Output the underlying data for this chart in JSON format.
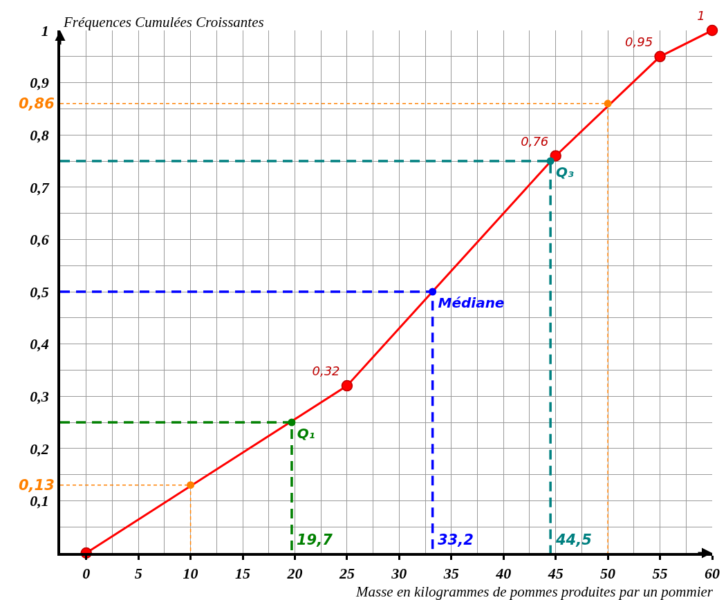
{
  "chart_data": {
    "type": "line",
    "xlabel": "Masse en kilogrammes de pommes produites par un pommier",
    "ylabel": "Fréquences Cumulées Croissantes",
    "xlim": [
      -2.5,
      60
    ],
    "xticks": [
      0,
      5,
      10,
      15,
      20,
      25,
      30,
      35,
      40,
      45,
      50,
      55,
      60
    ],
    "ylim": [
      0,
      1
    ],
    "yticks": [
      {
        "value": 0.1,
        "label": "0,1"
      },
      {
        "value": 0.2,
        "label": "0,2"
      },
      {
        "value": 0.3,
        "label": "0,3"
      },
      {
        "value": 0.4,
        "label": "0,4"
      },
      {
        "value": 0.5,
        "label": "0,5"
      },
      {
        "value": 0.6,
        "label": "0,6"
      },
      {
        "value": 0.7,
        "label": "0,7"
      },
      {
        "value": 0.8,
        "label": "0,8"
      },
      {
        "value": 0.9,
        "label": "0,9"
      },
      1
    ],
    "grid": true,
    "legend": false,
    "series": [
      {
        "color": "#ff0000",
        "x": [
          0,
          25,
          45,
          55,
          60
        ],
        "values": [
          0,
          0.32,
          0.76,
          0.95,
          1
        ],
        "marker": "circle",
        "line_style": "solid",
        "value_labels": [
          null,
          "0,32",
          "0,76",
          "0,95",
          "1"
        ]
      },
      {
        "type": "line",
        "color": "#ff8000",
        "x": [
          -2.5,
          10,
          10
        ],
        "values": [
          0.13,
          0.13,
          0
        ],
        "marker": "none",
        "line_style": "dotted"
      },
      {
        "type": "scatter",
        "color": "#ff8000",
        "x": [
          10
        ],
        "values": [
          0.13
        ],
        "marker": "circle"
      },
      {
        "type": "line",
        "color": "#ff8000",
        "x": [
          -2.5,
          50,
          50
        ],
        "values": [
          0.86,
          0.86,
          0
        ],
        "marker": "none",
        "line_style": "dotted"
      },
      {
        "type": "scatter",
        "color": "#ff8000",
        "x": [
          50
        ],
        "values": [
          0.86
        ],
        "marker": "circle"
      },
      {
        "type": "line",
        "color": "#008000",
        "x": [
          -2.5,
          19.7,
          19.7
        ],
        "values": [
          0.25,
          0.25,
          0
        ],
        "marker": "none",
        "line_style": "dashed"
      },
      {
        "type": "scatter",
        "name": "Q₁",
        "color": "#008000",
        "x": [
          19.7
        ],
        "values": [
          0.25
        ],
        "marker": "circle"
      },
      {
        "type": "line",
        "color": "#0000ff",
        "x": [
          -2.5,
          33.2,
          33.2
        ],
        "values": [
          0.5,
          0.5,
          0
        ],
        "marker": "none",
        "line_style": "dashed"
      },
      {
        "type": "scatter",
        "name": "Médiane",
        "color": "#0000ff",
        "x": [
          33.2
        ],
        "values": [
          0.5
        ],
        "marker": "circle"
      },
      {
        "type": "line",
        "color": "#008080",
        "x": [
          -2.5,
          44.5,
          44.5
        ],
        "values": [
          0.75,
          0.75,
          0
        ],
        "marker": "none",
        "line_style": "dashed"
      },
      {
        "type": "scatter",
        "name": "Q₃",
        "color": "#008080",
        "x": [
          44.5
        ],
        "values": [
          0.75
        ],
        "marker": "circle"
      }
    ],
    "annotations": [
      {
        "text": "0,13",
        "x": -2.5,
        "y": 0.13
      },
      {
        "text": "0,86",
        "x": -2.5,
        "y": 0.86
      },
      {
        "text": "19,7",
        "x": 19.7,
        "y": 0
      },
      {
        "text": "33,2",
        "x": 33.2,
        "y": 0
      },
      {
        "text": "44,5",
        "x": 44.5,
        "y": 0
      }
    ]
  }
}
